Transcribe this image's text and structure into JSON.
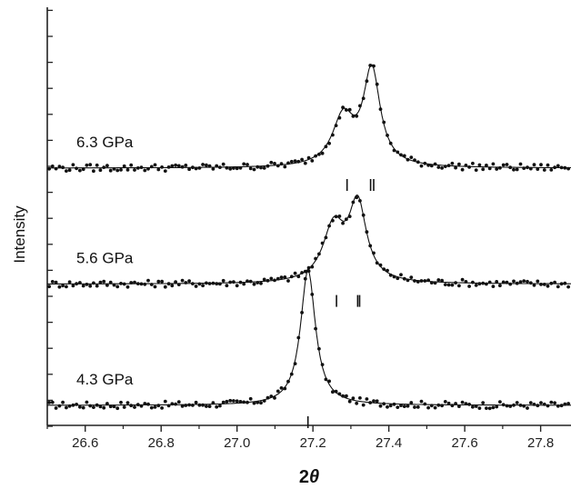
{
  "chart_data": {
    "type": "line",
    "title": "",
    "xlabel_main": "2",
    "xlabel_symbol": "θ",
    "ylabel": "Intensity",
    "xlim": [
      26.5,
      27.88
    ],
    "ylim": [
      0,
      3.3
    ],
    "x_ticks": [
      26.6,
      26.8,
      27.0,
      27.2,
      27.4,
      27.6,
      27.8
    ],
    "x_tick_labels": [
      "26.6",
      "26.8",
      "27.0",
      "27.2",
      "27.4",
      "27.6",
      "27.8"
    ],
    "series": [
      {
        "name": "4.3 GPa",
        "baseline": 0.0,
        "peaks": [
          {
            "center": 27.187,
            "amp": 1.28,
            "width": 0.024
          }
        ],
        "markers": [
          27.187
        ]
      },
      {
        "name": "5.6 GPa",
        "baseline": 1.15,
        "peaks": [
          {
            "center": 27.255,
            "amp": 0.52,
            "width": 0.035
          },
          {
            "center": 27.318,
            "amp": 0.72,
            "width": 0.028
          }
        ],
        "markers": [
          27.262,
          27.318,
          27.323
        ]
      },
      {
        "name": "6.3 GPa",
        "baseline": 2.25,
        "peaks": [
          {
            "center": 27.28,
            "amp": 0.46,
            "width": 0.035
          },
          {
            "center": 27.355,
            "amp": 0.9,
            "width": 0.027
          }
        ],
        "markers": [
          27.29,
          27.352,
          27.36
        ]
      }
    ]
  }
}
